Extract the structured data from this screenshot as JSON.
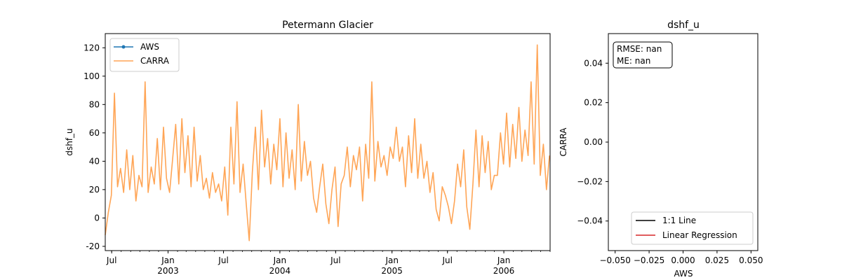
{
  "chart_data": [
    {
      "type": "line",
      "title": "Petermann Glacier",
      "xlabel": "",
      "ylabel": "dshf_u",
      "x_range": [
        "2002-06-10",
        "2006-06-01"
      ],
      "ylim": [
        -23,
        130
      ],
      "y_ticks": [
        -20,
        0,
        20,
        40,
        60,
        80,
        100,
        120
      ],
      "x_major_ticks": [
        {
          "date": "2002-07-01",
          "label": "Jul",
          "year": ""
        },
        {
          "date": "2003-01-01",
          "label": "Jan",
          "year": "2003"
        },
        {
          "date": "2003-07-01",
          "label": "Jul",
          "year": ""
        },
        {
          "date": "2004-01-01",
          "label": "Jan",
          "year": "2004"
        },
        {
          "date": "2004-07-01",
          "label": "Jul",
          "year": ""
        },
        {
          "date": "2005-01-01",
          "label": "Jan",
          "year": "2005"
        },
        {
          "date": "2005-07-01",
          "label": "Jul",
          "year": ""
        },
        {
          "date": "2006-01-01",
          "label": "Jan",
          "year": "2006"
        }
      ],
      "grid": false,
      "legend_position": "top-left",
      "series": [
        {
          "name": "AWS",
          "color": "#1f77b4",
          "marker": "circle",
          "values": []
        },
        {
          "name": "CARRA",
          "color": "#ff7f0e",
          "opacity": 0.7,
          "sampling": "10-day",
          "x": [
            "2002-06-10",
            "2002-06-20",
            "2002-06-30",
            "2002-07-10",
            "2002-07-20",
            "2002-07-30",
            "2002-08-09",
            "2002-08-19",
            "2002-08-29",
            "2002-09-08",
            "2002-09-18",
            "2002-09-28",
            "2002-10-08",
            "2002-10-18",
            "2002-10-28",
            "2002-11-07",
            "2002-11-17",
            "2002-11-27",
            "2002-12-07",
            "2002-12-17",
            "2002-12-27",
            "2003-01-06",
            "2003-01-16",
            "2003-01-26",
            "2003-02-05",
            "2003-02-15",
            "2003-02-25",
            "2003-03-07",
            "2003-03-17",
            "2003-03-27",
            "2003-04-06",
            "2003-04-16",
            "2003-04-26",
            "2003-05-06",
            "2003-05-16",
            "2003-05-26",
            "2003-06-05",
            "2003-06-15",
            "2003-06-25",
            "2003-07-05",
            "2003-07-15",
            "2003-07-25",
            "2003-08-04",
            "2003-08-14",
            "2003-08-24",
            "2003-09-03",
            "2003-09-13",
            "2003-09-23",
            "2003-10-03",
            "2003-10-13",
            "2003-10-23",
            "2003-11-02",
            "2003-11-12",
            "2003-11-22",
            "2003-12-02",
            "2003-12-12",
            "2003-12-22",
            "2004-01-01",
            "2004-01-11",
            "2004-01-21",
            "2004-01-31",
            "2004-02-10",
            "2004-02-20",
            "2004-03-01",
            "2004-03-11",
            "2004-03-21",
            "2004-03-31",
            "2004-04-10",
            "2004-04-20",
            "2004-04-30",
            "2004-05-10",
            "2004-05-20",
            "2004-05-30",
            "2004-06-09",
            "2004-06-19",
            "2004-06-29",
            "2004-07-09",
            "2004-07-19",
            "2004-07-29",
            "2004-08-08",
            "2004-08-18",
            "2004-08-28",
            "2004-09-07",
            "2004-09-17",
            "2004-09-27",
            "2004-10-07",
            "2004-10-17",
            "2004-10-27",
            "2004-11-06",
            "2004-11-16",
            "2004-11-26",
            "2004-12-06",
            "2004-12-16",
            "2004-12-26",
            "2005-01-05",
            "2005-01-15",
            "2005-01-25",
            "2005-02-04",
            "2005-02-14",
            "2005-02-24",
            "2005-03-06",
            "2005-03-16",
            "2005-03-26",
            "2005-04-05",
            "2005-04-15",
            "2005-04-25",
            "2005-05-05",
            "2005-05-15",
            "2005-05-25",
            "2005-06-04",
            "2005-06-14",
            "2005-06-24",
            "2005-07-04",
            "2005-07-14",
            "2005-07-24",
            "2005-08-03",
            "2005-08-13",
            "2005-08-23",
            "2005-09-02",
            "2005-09-12",
            "2005-09-22",
            "2005-10-02",
            "2005-10-12",
            "2005-10-22",
            "2005-11-01",
            "2005-11-11",
            "2005-11-21",
            "2005-12-01",
            "2005-12-11",
            "2005-12-21",
            "2005-12-31",
            "2006-01-10",
            "2006-01-20",
            "2006-01-30",
            "2006-02-09",
            "2006-02-19",
            "2006-03-01",
            "2006-03-11",
            "2006-03-21",
            "2006-03-31",
            "2006-04-10",
            "2006-04-20",
            "2006-04-30",
            "2006-05-10",
            "2006-05-20",
            "2006-05-30"
          ],
          "values": [
            -12,
            4,
            16,
            88,
            22,
            35,
            18,
            48,
            20,
            44,
            12,
            30,
            22,
            96,
            18,
            36,
            24,
            56,
            20,
            64,
            28,
            18,
            42,
            66,
            24,
            70,
            32,
            58,
            22,
            64,
            26,
            44,
            20,
            28,
            14,
            32,
            18,
            24,
            12,
            36,
            2,
            64,
            24,
            82,
            18,
            38,
            10,
            -16,
            32,
            64,
            20,
            76,
            36,
            56,
            24,
            52,
            34,
            70,
            22,
            60,
            28,
            48,
            20,
            80,
            26,
            54,
            30,
            40,
            14,
            4,
            22,
            38,
            10,
            -4,
            20,
            36,
            -6,
            24,
            30,
            50,
            22,
            44,
            34,
            50,
            12,
            52,
            28,
            96,
            26,
            54,
            36,
            44,
            30,
            50,
            42,
            64,
            40,
            50,
            22,
            58,
            32,
            70,
            28,
            52,
            28,
            40,
            18,
            32,
            6,
            -2,
            22,
            16,
            8,
            -4,
            12,
            38,
            22,
            48,
            8,
            -8,
            24,
            62,
            22,
            58,
            32,
            54,
            20,
            30,
            30,
            60,
            38,
            74,
            36,
            66,
            42,
            78,
            40,
            62,
            44,
            96,
            38,
            122,
            30,
            52,
            20,
            44
          ]
        }
      ]
    },
    {
      "type": "scatter",
      "title": "dshf_u",
      "xlabel": "AWS",
      "ylabel": "CARRA",
      "xlim": [
        -0.055,
        0.055
      ],
      "ylim": [
        -0.055,
        0.055
      ],
      "x_ticks": [
        "−0.050",
        "−0.025",
        "0.000",
        "0.025",
        "0.050"
      ],
      "y_ticks": [
        "−0.04",
        "−0.02",
        "0.00",
        "0.02",
        "0.04"
      ],
      "x_tick_values": [
        -0.05,
        -0.025,
        0.0,
        0.025,
        0.05
      ],
      "y_tick_values": [
        -0.04,
        -0.02,
        0.0,
        0.02,
        0.04
      ],
      "grid": false,
      "stats_lines": [
        "RMSE: nan",
        "ME: nan"
      ],
      "legend_position": "bottom-right",
      "series": [
        {
          "name": "1:1 Line",
          "color": "#000000",
          "values": []
        },
        {
          "name": "Linear Regression",
          "color": "#d62728",
          "values": []
        }
      ]
    }
  ]
}
